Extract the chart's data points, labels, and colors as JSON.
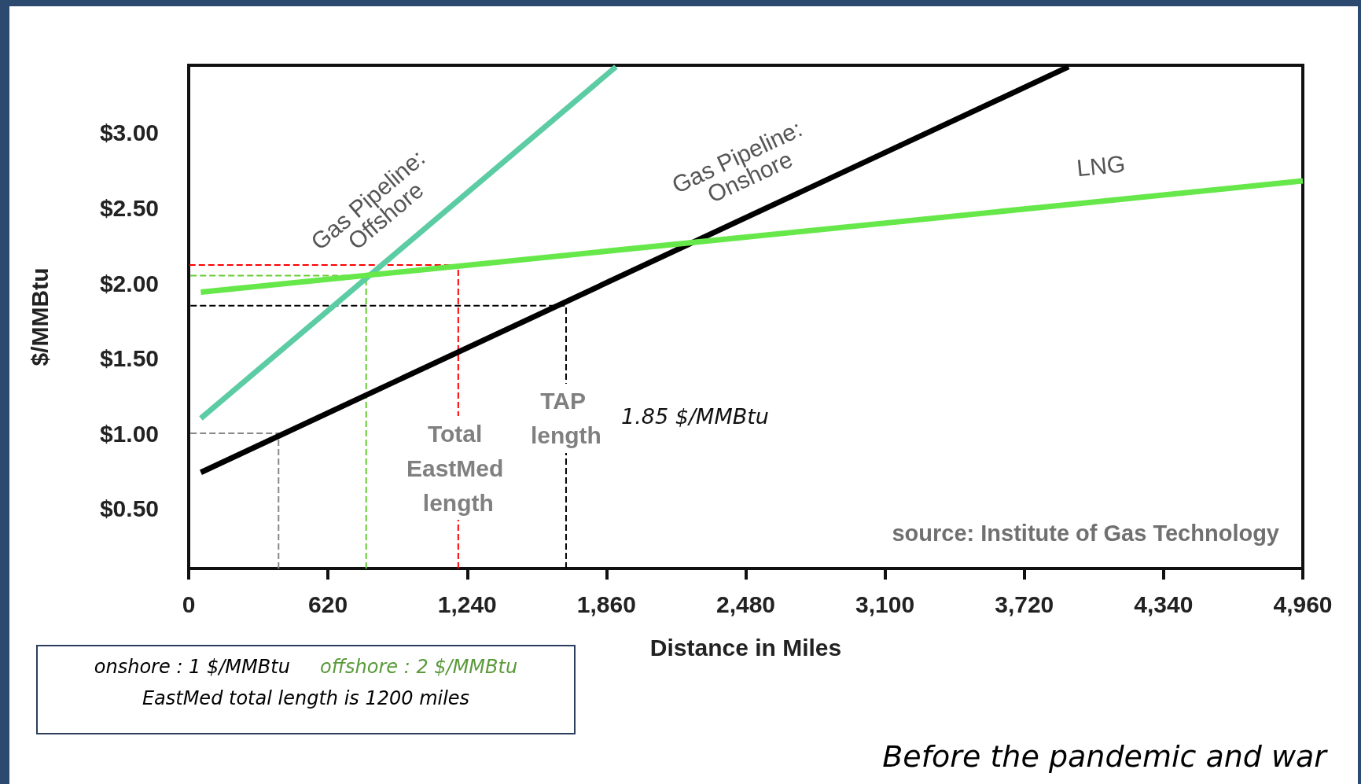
{
  "chart_data": {
    "type": "line",
    "xlabel": "Distance in Miles",
    "ylabel": "$/MMBtu",
    "xlim": [
      0,
      4960
    ],
    "ylim": [
      0.1,
      3.45
    ],
    "xticks": [
      0,
      620,
      {
        "value": 1240,
        "label": "1,240"
      },
      {
        "value": 1860,
        "label": "1,860"
      },
      {
        "value": 2480,
        "label": "2,480"
      },
      {
        "value": 3100,
        "label": "3,100"
      },
      {
        "value": 3720,
        "label": "3,720"
      },
      {
        "value": 4340,
        "label": "4,340"
      },
      {
        "value": 4960,
        "label": "4,960"
      }
    ],
    "yticks": [
      {
        "value": 0.5,
        "label": "$0.50"
      },
      {
        "value": 1,
        "label": "$1.00"
      },
      {
        "value": 1.5,
        "label": "$1.50"
      },
      {
        "value": 2,
        "label": "$2.00"
      },
      {
        "value": 2.5,
        "label": "$2.50"
      },
      {
        "value": 3,
        "label": "$3.00"
      }
    ],
    "grid": false,
    "legend": false,
    "marker": "none",
    "series": [
      {
        "name": "Gas Pipeline: Offshore",
        "color": "#5ccca4",
        "x": [
          54,
          1902
        ],
        "values": [
          1.1,
          3.44
        ]
      },
      {
        "name": "Gas Pipeline: Onshore",
        "color": "#000000",
        "x": [
          54,
          3917
        ],
        "values": [
          0.74,
          3.44
        ]
      },
      {
        "name": "LNG",
        "color": "#66e84a",
        "x": [
          54,
          4960
        ],
        "values": [
          1.94,
          2.68
        ]
      },
      {
        "color": "#888888",
        "line_style": "dashed",
        "x": [
          400,
          400,
          0
        ],
        "values": [
          0.1,
          1.0,
          1.0
        ]
      },
      {
        "color": "#66cc33",
        "line_style": "dashed",
        "x": [
          790,
          790,
          0
        ],
        "values": [
          0.1,
          2.05,
          2.05
        ]
      },
      {
        "color": "#ff0000",
        "line_style": "dashed",
        "x": [
          1200,
          1200,
          0
        ],
        "values": [
          0.1,
          2.12,
          2.12
        ]
      },
      {
        "color": "#000000",
        "line_style": "dashed",
        "x": [
          1680,
          1680,
          0
        ],
        "values": [
          0.1,
          1.85,
          1.85
        ]
      }
    ],
    "annotations": [
      {
        "text": "Total EastMed length",
        "x": 1200,
        "y": 0.77
      },
      {
        "text": "TAP length",
        "x": 1680,
        "y": 1.1
      },
      "1.85 $/MMBtu",
      "source: Institute of Gas Technology",
      "onshore : 1 $/MMBtu",
      "offshore : 2 $/MMBtu",
      "EastMed  total length is 1200 miles",
      "Before the pandemic and war"
    ]
  }
}
